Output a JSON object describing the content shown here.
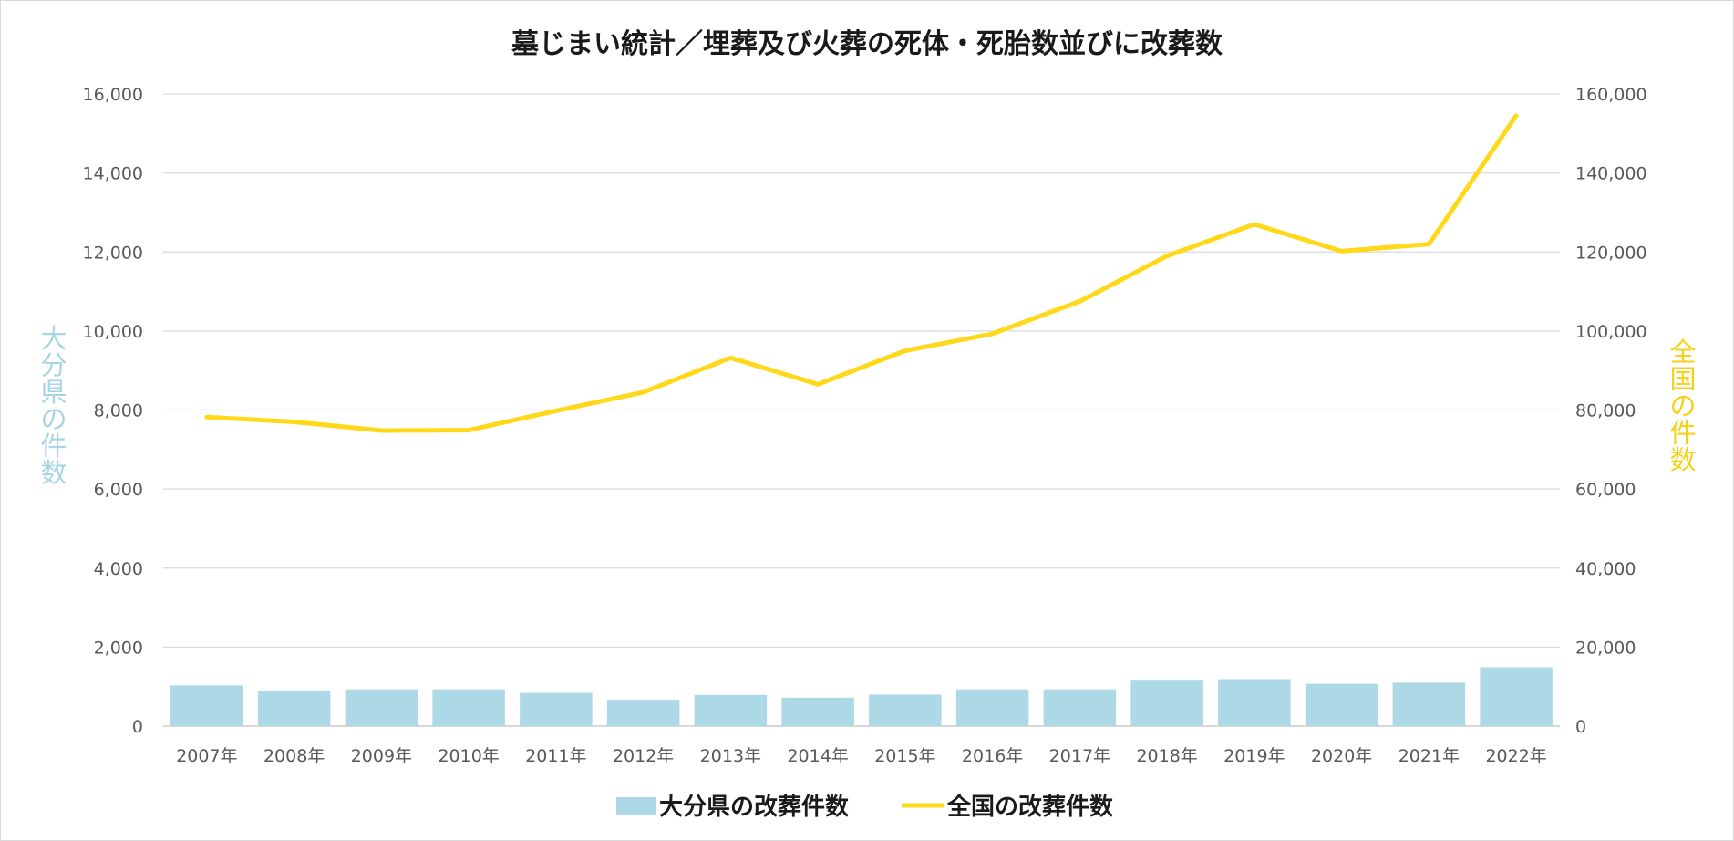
{
  "chart_data": {
    "type": "bar",
    "title": "墓じまい統計／埋葬及び火葬の死体・死胎数並びに改葬数",
    "categories": [
      "2007年",
      "2008年",
      "2009年",
      "2010年",
      "2011年",
      "2012年",
      "2013年",
      "2014年",
      "2015年",
      "2016年",
      "2017年",
      "2018年",
      "2019年",
      "2020年",
      "2021年",
      "2022年"
    ],
    "y_left": {
      "label": "大分県の件数",
      "ylim": [
        0,
        16000
      ],
      "ticks": [
        "0",
        "2,000",
        "4,000",
        "6,000",
        "8,000",
        "10,000",
        "12,000",
        "14,000",
        "16,000"
      ]
    },
    "y_right": {
      "label": "全国の件数",
      "ylim": [
        0,
        160000
      ],
      "ticks": [
        "0",
        "20,000",
        "40,000",
        "60,000",
        "80,000",
        "100,000",
        "120,000",
        "140,000",
        "160,000"
      ]
    },
    "series": [
      {
        "name": "大分県の改葬件数",
        "type": "bar",
        "axis": "left",
        "color": "#add8e6",
        "values": [
          1030,
          880,
          930,
          930,
          840,
          670,
          790,
          720,
          800,
          930,
          930,
          1150,
          1190,
          1070,
          1100,
          1490
        ]
      },
      {
        "name": "全国の改葬件数",
        "type": "line",
        "axis": "right",
        "color": "#ffd81a",
        "values": [
          78200,
          77000,
          74800,
          74900,
          79800,
          84500,
          93200,
          86500,
          95000,
          99300,
          107500,
          119000,
          127000,
          120200,
          122000,
          154500
        ]
      }
    ],
    "grid": true,
    "legend": "bottom-center"
  }
}
